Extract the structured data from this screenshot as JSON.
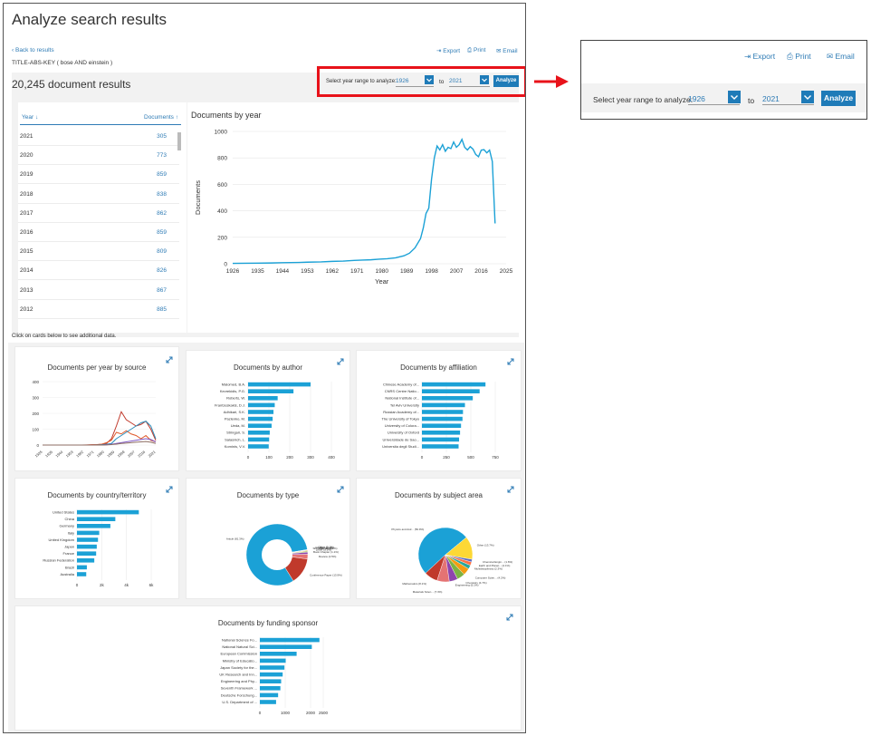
{
  "page": {
    "title": "Analyze search results",
    "back_link": "Back to results",
    "query": "TITLE-ABS-KEY ( bose  AND einstein )",
    "results_count": "20,245 document results",
    "click_hint": "Click on cards below to see additional data."
  },
  "toolbar": {
    "export": "Export",
    "print": "Print",
    "email": "Email"
  },
  "year_range": {
    "label": "Select year range to analyze:",
    "from": "1926",
    "to_label": "to",
    "to": "2021",
    "analyze": "Analyze"
  },
  "colors": {
    "accent": "#1f7bb8",
    "highlight_box": "#e8121a",
    "bar": "#1ba1d6"
  },
  "year_table": {
    "col_year": "Year",
    "col_docs": "Documents",
    "rows": [
      {
        "year": "2021",
        "docs": "305"
      },
      {
        "year": "2020",
        "docs": "773"
      },
      {
        "year": "2019",
        "docs": "859"
      },
      {
        "year": "2018",
        "docs": "838"
      },
      {
        "year": "2017",
        "docs": "862"
      },
      {
        "year": "2016",
        "docs": "859"
      },
      {
        "year": "2015",
        "docs": "809"
      },
      {
        "year": "2014",
        "docs": "826"
      },
      {
        "year": "2013",
        "docs": "867"
      },
      {
        "year": "2012",
        "docs": "885"
      }
    ]
  },
  "cards": {
    "by_year": "Documents by year",
    "per_year_source": "Documents per year by source",
    "by_author": "Documents by author",
    "by_affiliation": "Documents by affiliation",
    "by_country": "Documents by country/territory",
    "by_type": "Documents by type",
    "by_subject": "Documents by subject area",
    "by_funding": "Documents by funding sponsor"
  },
  "icons": {
    "back": "chevron-left-icon",
    "export": "export-icon",
    "print": "print-icon",
    "email": "email-icon",
    "expand": "expand-icon",
    "dropdown": "chevron-down-icon",
    "arrow": "right-arrow-icon"
  },
  "chart_data": [
    {
      "type": "line",
      "title": "Documents by year",
      "xlabel": "Year",
      "ylabel": "Documents",
      "xlim": [
        1926,
        2025
      ],
      "ylim": [
        0,
        1000
      ],
      "xticks": [
        1926,
        1935,
        1944,
        1953,
        1962,
        1971,
        1980,
        1989,
        1998,
        2007,
        2016,
        2025
      ],
      "yticks": [
        0,
        200,
        400,
        600,
        800,
        1000
      ],
      "x": [
        1926,
        1930,
        1935,
        1940,
        1944,
        1950,
        1953,
        1958,
        1962,
        1966,
        1970,
        1973,
        1976,
        1979,
        1982,
        1985,
        1988,
        1990,
        1992,
        1994,
        1995,
        1996,
        1997,
        1998,
        1999,
        2000,
        2001,
        2002,
        2003,
        2004,
        2005,
        2006,
        2007,
        2008,
        2009,
        2010,
        2011,
        2012,
        2013,
        2014,
        2015,
        2016,
        2017,
        2018,
        2019,
        2020,
        2021
      ],
      "y": [
        3,
        4,
        5,
        6,
        8,
        10,
        12,
        14,
        18,
        20,
        25,
        28,
        30,
        35,
        38,
        45,
        60,
        80,
        120,
        190,
        270,
        380,
        420,
        640,
        800,
        890,
        860,
        900,
        850,
        880,
        870,
        920,
        880,
        900,
        940,
        880,
        860,
        885,
        867,
        826,
        809,
        859,
        862,
        838,
        859,
        773,
        305
      ]
    },
    {
      "type": "line",
      "title": "Documents per year by source",
      "xticks": [
        "1926",
        "1935",
        "1944",
        "1953",
        "1962",
        "1971",
        "1980",
        "1989",
        "1998",
        "2007",
        "2016",
        "2021"
      ],
      "ylim": [
        0,
        400
      ],
      "yticks": [
        0,
        100,
        200,
        300,
        400
      ],
      "series": [
        {
          "color": "#c0392b",
          "values": [
            0,
            0,
            0,
            0,
            0,
            0,
            0,
            0,
            0,
            1,
            2,
            3,
            5,
            10,
            40,
            120,
            210,
            160,
            140,
            120,
            130,
            150,
            100,
            30
          ]
        },
        {
          "color": "#e05a2b",
          "values": [
            0,
            0,
            0,
            0,
            0,
            0,
            0,
            0,
            0,
            0,
            1,
            2,
            5,
            15,
            30,
            80,
            70,
            90,
            70,
            60,
            40,
            60,
            30,
            20
          ]
        },
        {
          "color": "#2c8ebb",
          "values": [
            0,
            0,
            0,
            0,
            0,
            0,
            0,
            0,
            0,
            0,
            0,
            1,
            2,
            5,
            10,
            40,
            60,
            80,
            100,
            120,
            140,
            150,
            120,
            40
          ]
        },
        {
          "color": "#7e57c2",
          "values": [
            0,
            0,
            0,
            0,
            0,
            0,
            0,
            0,
            0,
            0,
            0,
            0,
            0,
            2,
            5,
            10,
            15,
            20,
            25,
            30,
            35,
            40,
            35,
            20
          ]
        },
        {
          "color": "#8d6e63",
          "values": [
            0,
            0,
            0,
            0,
            0,
            0,
            0,
            0,
            0,
            0,
            0,
            0,
            0,
            1,
            3,
            6,
            10,
            12,
            15,
            18,
            20,
            22,
            18,
            10
          ]
        }
      ]
    },
    {
      "type": "bar",
      "title": "Documents by author",
      "categories": [
        "Malomed, B.A.",
        "Kevrekidis, P.G.",
        "Roberts, W.",
        "Frantzeskakis, D.J.",
        "Adhikari, S.K.",
        "Pazlenko, M.",
        "Ueda, M.",
        "Stringari, S.",
        "Salasnich, L.",
        "Kominis, V.V."
      ],
      "values": [
        300,
        218,
        142,
        128,
        122,
        118,
        113,
        104,
        101,
        99
      ],
      "xticks": [
        0,
        100,
        200,
        300,
        400
      ]
    },
    {
      "type": "bar",
      "title": "Documents by affiliation",
      "categories": [
        "Chinese Academy of...",
        "CNRS Centre Natio...",
        "National Institute of...",
        "Tel Aviv University",
        "Russian Academy of...",
        "The University of Tokyo",
        "University of Colora...",
        "University of Oxford",
        "Universidade de Sao...",
        "Universita degli Studi..."
      ],
      "values": [
        650,
        590,
        520,
        440,
        420,
        415,
        400,
        390,
        380,
        375
      ],
      "xticks": [
        0,
        250,
        500,
        750
      ]
    },
    {
      "type": "bar",
      "title": "Documents by country/territory",
      "categories": [
        "United States",
        "China",
        "Germany",
        "Italy",
        "United Kingdom",
        "Japan",
        "France",
        "Russian Federation",
        "Brazil",
        "Australia"
      ],
      "values": [
        5000,
        3100,
        2700,
        1800,
        1700,
        1600,
        1550,
        1400,
        800,
        750
      ],
      "xticks": [
        "0",
        "2k",
        "4k",
        "6k"
      ]
    },
    {
      "type": "pie",
      "title": "Documents by type",
      "donut": true,
      "categories": [
        "Article (81.3%)",
        "Conference Paper (13.9%)",
        "Review (2.5%)",
        "Book Chapter (1.1%)",
        "Letter (0.5%)",
        "Note (0.4%)",
        "Short Survey (0.2%)",
        "Erratum (0.1%)",
        "Other (0.1%)"
      ],
      "values": [
        81.3,
        13.9,
        2.5,
        1.1,
        0.5,
        0.4,
        0.2,
        0.1,
        0.1
      ]
    },
    {
      "type": "pie",
      "title": "Documents by subject area",
      "categories": [
        "Physics and Astr... (50.9%)",
        "Mathematics (8.1%)",
        "Materials Scien... (7.3%)",
        "Engineering (5.1%)",
        "Chemistry (4.7%)",
        "Computer Scien... (4.2%)",
        "Multidisciplinary (2.3%)",
        "Earth and Planet... (2.1%)",
        "Chemical Engin... (1.6%)",
        "Other (13.7%)"
      ],
      "values": [
        50.9,
        8.1,
        7.3,
        5.1,
        4.7,
        4.2,
        2.3,
        2.1,
        1.6,
        13.7
      ]
    },
    {
      "type": "bar",
      "title": "Documents by funding sponsor",
      "categories": [
        "National Science Fo...",
        "National Natural Sci...",
        "European Commission",
        "Ministry of Educatio...",
        "Japan Society for the...",
        "UK Research and Inn...",
        "Engineering and Phy...",
        "Seventh Framework ...",
        "Deutsche Forschung...",
        "U.S. Department of ..."
      ],
      "values": [
        2350,
        2050,
        1450,
        1020,
        970,
        900,
        840,
        810,
        720,
        640
      ],
      "xticks": [
        0,
        1000,
        2000,
        2500
      ]
    }
  ]
}
